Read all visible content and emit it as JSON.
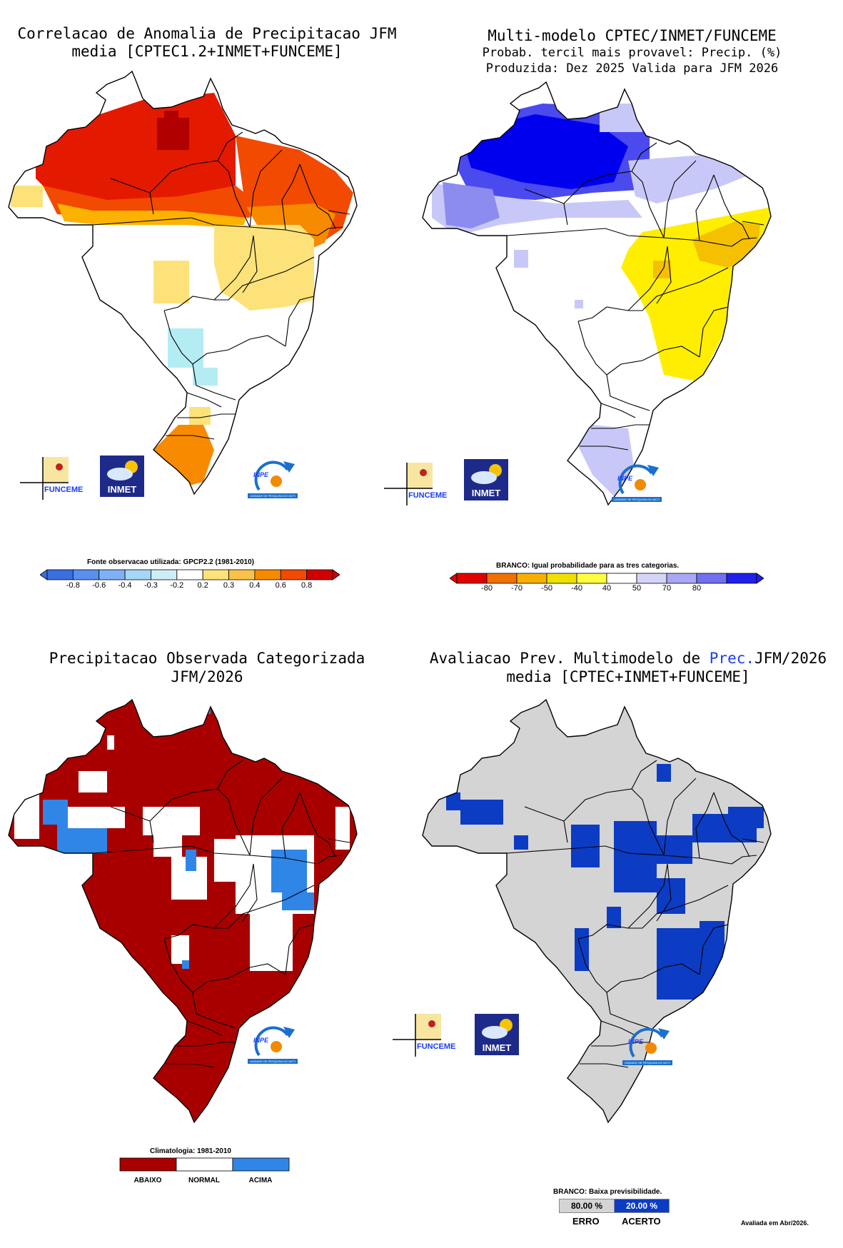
{
  "palette": {
    "red_dark": "#b00000",
    "red": "#e31a00",
    "orange_red": "#f24a00",
    "orange": "#f88a00",
    "orange_light": "#fbb200",
    "yellow_light": "#fde27a",
    "cyan_light": "#b4ecf4",
    "blue_dark": "#0000ee",
    "blue": "#4a4aee",
    "blue_mid": "#8c8cf0",
    "blue_light": "#c8c8f8",
    "yellow": "#ffee00",
    "gold": "#f4c000",
    "obs_red": "#a80000",
    "obs_blue": "#2f86e6",
    "gray": "#d4d4d4",
    "hit_blue": "#0c3cc4"
  },
  "panels": {
    "anomaly_correlation": {
      "title_line1": "Correlacao de Anomalia de Precipitacao JFM",
      "title_line2": "media [CPTEC1.2+INMET+FUNCEME]",
      "source_note": "Fonte observacao utilizada: GPCP2.2 (1981-2010)",
      "colorbar_ticks": [
        "-0.8",
        "-0.6",
        "-0.4",
        "-0.3",
        "-0.2",
        "0.2",
        "0.3",
        "0.4",
        "0.6",
        "0.8"
      ]
    },
    "multimodel_forecast": {
      "title_line1": "Multi-modelo CPTEC/INMET/FUNCEME",
      "title_line2": "Probab. tercil mais provavel: Precip. (%)",
      "title_line3": "Produzida: Dez 2025  Valida para JFM 2026",
      "white_note": "BRANCO: Igual probabilidade para as tres categorias.",
      "colorbar_ticks": [
        "-80",
        "-70",
        "-50",
        "-40",
        "40",
        "50",
        "70",
        "80"
      ]
    },
    "observed_categorized": {
      "title_line1": "Precipitacao Observada Categorizada",
      "title_line2": "JFM/2026",
      "climatology_note": "Climatologia: 1981-2010",
      "categories": [
        "ABAIXO",
        "NORMAL",
        "ACIMA"
      ]
    },
    "forecast_evaluation": {
      "title_line1_a": "Avaliacao Prev. Multimodelo de",
      "title_line1_b": "Prec.",
      "title_line1_c": "JFM/2026",
      "title_line2": "media [CPTEC+INMET+FUNCEME]",
      "white_note": "BRANCO: Baixa previsibilidade.",
      "error_value": "80.00 %",
      "hit_value": "20.00 %",
      "error_label": "ERRO",
      "hit_label": "ACERTO",
      "evaluated_note": "Avaliada em Abr/2026."
    }
  },
  "logos": {
    "funceme": "FUNCEME",
    "inmet": "INMET",
    "inpe": "INPE",
    "inpe_caption": "UNIDADE DE PESQUISA DO MCTI"
  }
}
